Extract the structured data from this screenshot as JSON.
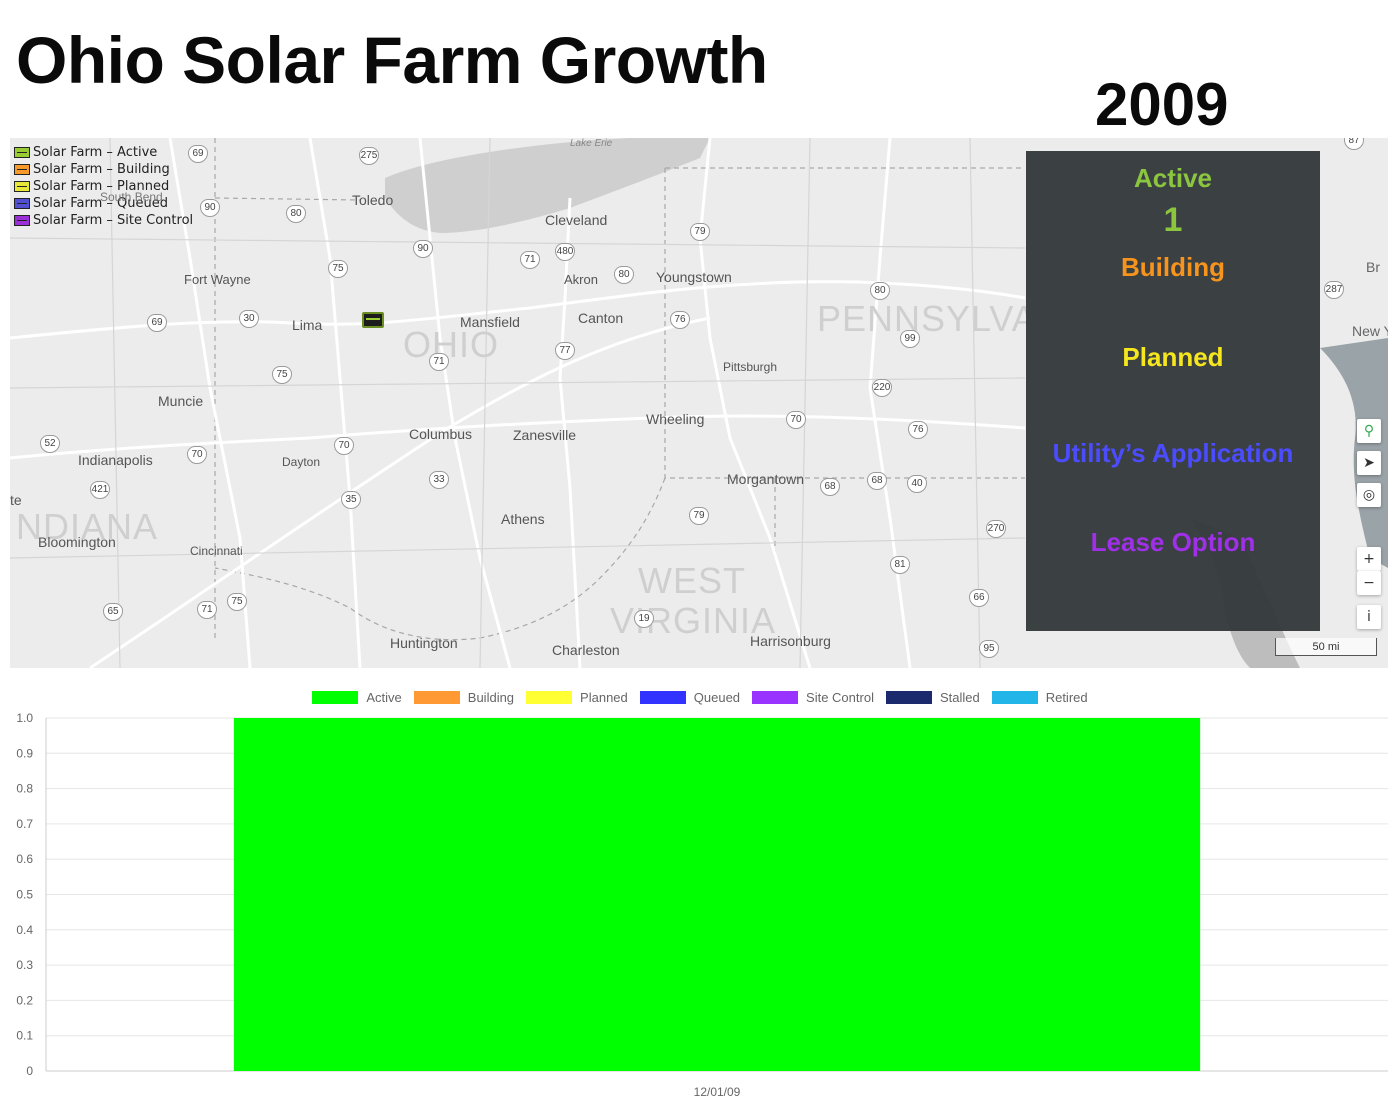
{
  "page": {
    "title": "Ohio Solar Farm Growth",
    "year": "2009"
  },
  "map": {
    "legend": [
      {
        "label": "Solar Farm – Active",
        "color": "#9acd32"
      },
      {
        "label": "Solar Farm – Building",
        "color": "#f59a2b"
      },
      {
        "label": "Solar Farm – Planned",
        "color": "#e8e83a"
      },
      {
        "label": "Solar Farm – Queued",
        "color": "#5050d0"
      },
      {
        "label": "Solar Farm – Site Control",
        "color": "#9b30d9"
      }
    ],
    "places": {
      "toledo": "Toledo",
      "cleveland": "Cleveland",
      "fort_wayne": "Fort Wayne",
      "akron": "Akron",
      "youngstown": "Youngstown",
      "lima": "Lima",
      "mansfield": "Mansfield",
      "canton": "Canton",
      "ohio": "OHIO",
      "pennsylvania": "PENNSYLVA",
      "muncie": "Muncie",
      "pittsburgh": "Pittsburgh",
      "columbus": "Columbus",
      "zanesville": "Zanesville",
      "wheeling": "Wheeling",
      "indianapolis": "Indianapolis",
      "dayton": "Dayton",
      "morgantown": "Morgantown",
      "indiana": "NDIANA",
      "athens": "Athens",
      "bloomington": "Bloomington",
      "cincinnati": "Cincinnati",
      "west": "WEST",
      "virginia": "VIRGINIA",
      "huntington": "Huntington",
      "charleston": "Charleston",
      "harrisonburg": "Harrisonburg",
      "lake_erie": "Lake Erie",
      "south_bend": "South Bend",
      "new_york": "New Y",
      "te": "te",
      "br": "Br"
    },
    "highways": [
      "69",
      "275",
      "90",
      "80",
      "75",
      "90",
      "480",
      "71",
      "80",
      "79",
      "30",
      "69",
      "80",
      "76",
      "77",
      "71",
      "75",
      "99",
      "220",
      "52",
      "70",
      "70",
      "33",
      "70",
      "76",
      "421",
      "35",
      "68",
      "68",
      "40",
      "79",
      "270",
      "81",
      "65",
      "71",
      "75",
      "19",
      "66",
      "95",
      "87",
      "287"
    ],
    "status_panel": {
      "active_label": "Active",
      "active_count": "1",
      "building_label": "Building",
      "planned_label": "Planned",
      "queued_label": "Utility’s Application",
      "site_control_label": "Lease Option",
      "colors": {
        "active": "#8cc63f",
        "building": "#f7941d",
        "planned": "#f5e61e",
        "queued": "#4c4cff",
        "site_control": "#a030e8"
      }
    },
    "controls": {
      "zoom_in": "+",
      "zoom_out": "−",
      "info": "i"
    },
    "scale": "50 mi"
  },
  "chart_data": {
    "type": "bar",
    "categories": [
      "12/01/09"
    ],
    "series": [
      {
        "name": "Active",
        "color": "#00ff00",
        "values": [
          1
        ]
      },
      {
        "name": "Building",
        "color": "#ff9933",
        "values": [
          0
        ]
      },
      {
        "name": "Planned",
        "color": "#ffff33",
        "values": [
          0
        ]
      },
      {
        "name": "Queued",
        "color": "#3333ff",
        "values": [
          0
        ]
      },
      {
        "name": "Site Control",
        "color": "#9933ff",
        "values": [
          0
        ]
      },
      {
        "name": "Stalled",
        "color": "#1a2a6c",
        "values": [
          0
        ]
      },
      {
        "name": "Retired",
        "color": "#22b5e8",
        "values": [
          0
        ]
      }
    ],
    "stacked": true,
    "ylim": [
      0,
      1.0
    ],
    "yticks": [
      "1.0",
      "0.9",
      "0.8",
      "0.7",
      "0.6",
      "0.5",
      "0.4",
      "0.3",
      "0.2",
      "0.1",
      "0"
    ],
    "legend_position": "top-center",
    "grid": true
  }
}
